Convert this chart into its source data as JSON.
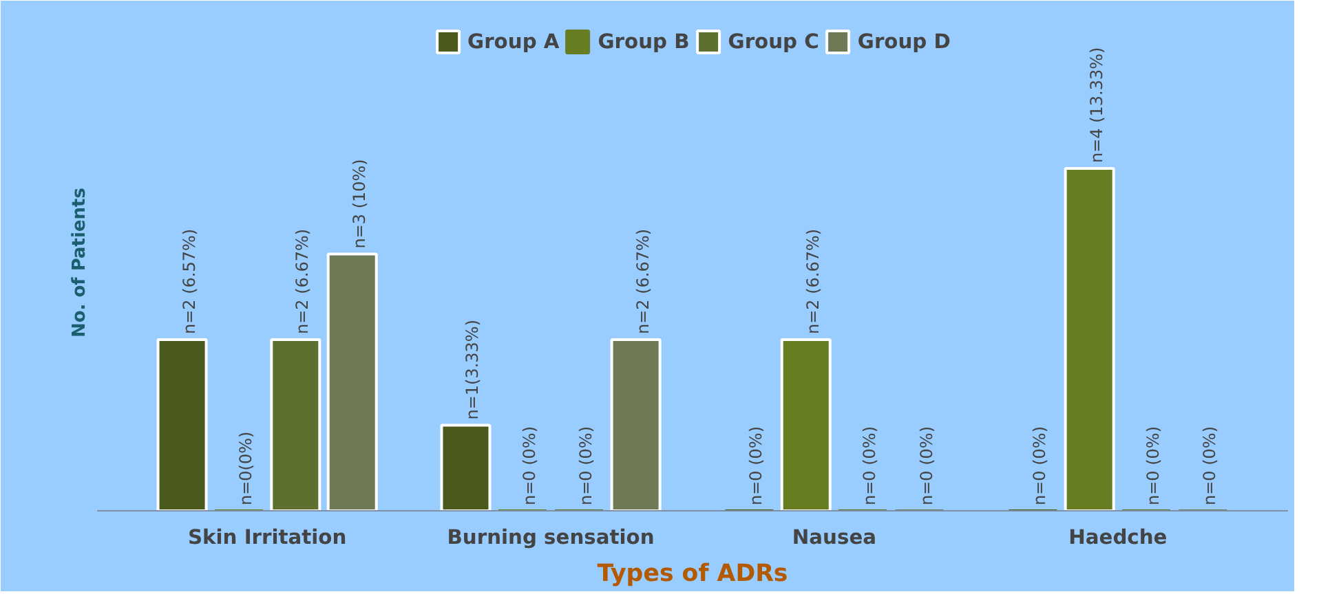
{
  "chart_data": {
    "type": "bar",
    "xlabel": "Types of ADRs",
    "ylabel": "No. of Patients",
    "categories": [
      "Skin Irritation",
      "Burning sensation",
      "Nausea",
      "Haedche"
    ],
    "series": [
      {
        "name": "Group A",
        "color": "#4a5a1c",
        "values": [
          2,
          1,
          0,
          0
        ],
        "value_labels": [
          "n=2 (6.57%)",
          "n=1(3.33%)",
          "n=0 (0%)",
          "n=0 (0%)"
        ]
      },
      {
        "name": "Group B",
        "color": "#667d22",
        "values": [
          0,
          0,
          2,
          4
        ],
        "value_labels": [
          "n=0(0%)",
          "n=0 (0%)",
          "n=2 (6.67%)",
          "n=4 (13.33%)"
        ]
      },
      {
        "name": "Group C",
        "color": "#5e7030",
        "values": [
          2,
          0,
          0,
          0
        ],
        "value_labels": [
          "n=2 (6.67%)",
          "n=0 (0%)",
          "n=0 (0%)",
          "n=0 (0%)"
        ]
      },
      {
        "name": "Group D",
        "color": "#6e7a55",
        "values": [
          3,
          2,
          0,
          0
        ],
        "value_labels": [
          "n=3 (10%)",
          "n=2 (6.67%)",
          "n=0 (0%)",
          "n=0 (0%)"
        ]
      }
    ],
    "legend": "top"
  }
}
